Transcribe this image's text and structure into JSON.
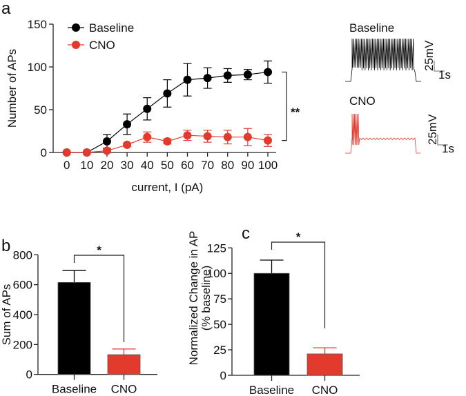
{
  "colors": {
    "baseline": "#000000",
    "cno": "#e33a2e",
    "axis": "#222222",
    "scale": "#888888"
  },
  "chart_data": [
    {
      "panel": "a",
      "type": "line",
      "xlabel": "current, I (pA)",
      "ylabel": "Number of APs",
      "xlim": [
        0,
        100
      ],
      "ylim": [
        0,
        150
      ],
      "x": [
        0,
        10,
        20,
        30,
        40,
        50,
        60,
        70,
        80,
        90,
        100
      ],
      "x_tick_labels": [
        "0",
        "10",
        "20",
        "30",
        "40",
        "50",
        "60",
        "70",
        "80",
        "90",
        "100"
      ],
      "y_ticks": [
        0,
        50,
        100,
        150
      ],
      "y_tick_labels": [
        "0",
        "50",
        "100",
        "150"
      ],
      "legend_position": "top-left",
      "series": [
        {
          "name": "Baseline",
          "values": [
            0,
            0,
            13,
            33,
            51,
            69,
            85,
            87,
            90,
            91,
            94
          ],
          "error": [
            0,
            0,
            8,
            12,
            13,
            16,
            19,
            12,
            8,
            6,
            13
          ]
        },
        {
          "name": "CNO",
          "values": [
            0,
            0,
            2,
            9,
            18,
            13,
            20,
            19,
            18,
            18,
            14
          ],
          "error": [
            0,
            0,
            1,
            2,
            6,
            3,
            6,
            7,
            8,
            10,
            7
          ]
        }
      ],
      "significance": "**"
    },
    {
      "panel": "b",
      "type": "bar",
      "categories": [
        "Baseline",
        "CNO"
      ],
      "values": [
        615,
        132
      ],
      "error": [
        80,
        38
      ],
      "ylabel": "Sum of APs",
      "ylim": [
        0,
        800
      ],
      "y_ticks": [
        0,
        200,
        400,
        600,
        800
      ],
      "y_tick_labels": [
        "0",
        "200",
        "400",
        "600",
        "800"
      ],
      "significance": "*"
    },
    {
      "panel": "c",
      "type": "bar",
      "categories": [
        "Baseline",
        "CNO"
      ],
      "values": [
        100,
        21
      ],
      "error": [
        13,
        6
      ],
      "ylabel": "Normalized Change in AP",
      "ylabel2": "(% baseline)",
      "ylim": [
        0,
        125
      ],
      "y_ticks": [
        0,
        25,
        50,
        75,
        100,
        125
      ],
      "y_tick_labels": [
        "0",
        "25",
        "50",
        "75",
        "100",
        "125"
      ],
      "significance": "*"
    }
  ],
  "traces": {
    "baseline_label": "Baseline",
    "cno_label": "CNO",
    "scale_v": "25mV",
    "scale_t": "1s"
  }
}
